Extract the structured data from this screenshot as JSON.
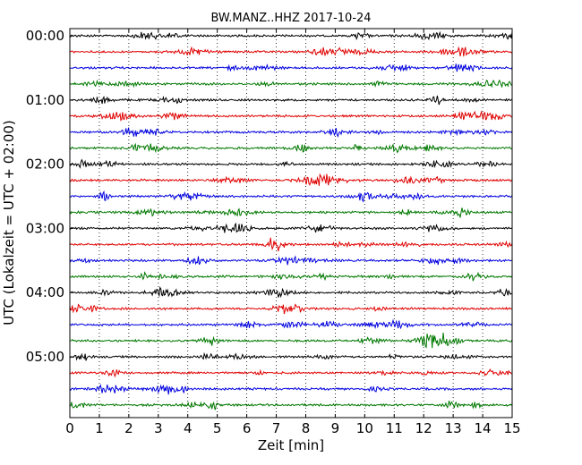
{
  "chart_data": {
    "type": "line",
    "subtype": "seismogram-dayplot",
    "title": "BW.MANZ..HHZ 2017-10-24",
    "xlabel": "Zeit  [min]",
    "ylabel": "UTC (Lokalzeit = UTC + 02:00)",
    "xlim": [
      0,
      15
    ],
    "x_ticks": [
      0,
      1,
      2,
      3,
      4,
      5,
      6,
      7,
      8,
      9,
      10,
      11,
      12,
      13,
      14,
      15
    ],
    "y_tick_labels": [
      "00:00",
      "01:00",
      "02:00",
      "03:00",
      "04:00",
      "05:00"
    ],
    "trace_interval_min": 15,
    "grid": "vertical dotted lines at each minute",
    "color_cycle": [
      "#000000",
      "#e00000",
      "#0000e0",
      "#007800"
    ],
    "traces": [
      {
        "start": "00:00",
        "color": "#000000"
      },
      {
        "start": "00:15",
        "color": "#e00000"
      },
      {
        "start": "00:30",
        "color": "#0000e0"
      },
      {
        "start": "00:45",
        "color": "#007800"
      },
      {
        "start": "01:00",
        "color": "#000000"
      },
      {
        "start": "01:15",
        "color": "#e00000"
      },
      {
        "start": "01:30",
        "color": "#0000e0"
      },
      {
        "start": "01:45",
        "color": "#007800"
      },
      {
        "start": "02:00",
        "color": "#000000"
      },
      {
        "start": "02:15",
        "color": "#e00000"
      },
      {
        "start": "02:30",
        "color": "#0000e0"
      },
      {
        "start": "02:45",
        "color": "#007800"
      },
      {
        "start": "03:00",
        "color": "#000000"
      },
      {
        "start": "03:15",
        "color": "#e00000"
      },
      {
        "start": "03:30",
        "color": "#0000e0"
      },
      {
        "start": "03:45",
        "color": "#007800"
      },
      {
        "start": "04:00",
        "color": "#000000"
      },
      {
        "start": "04:15",
        "color": "#e00000"
      },
      {
        "start": "04:30",
        "color": "#0000e0"
      },
      {
        "start": "04:45",
        "color": "#007800"
      },
      {
        "start": "05:00",
        "color": "#000000"
      },
      {
        "start": "05:15",
        "color": "#e00000"
      },
      {
        "start": "05:30",
        "color": "#0000e0"
      },
      {
        "start": "05:45",
        "color": "#007800"
      }
    ]
  }
}
